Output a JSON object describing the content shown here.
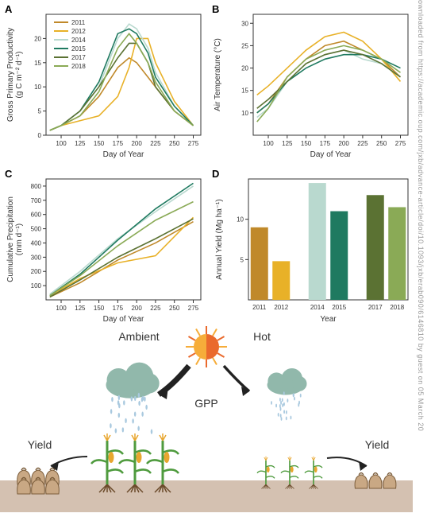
{
  "watermark_text": "ownloaded from https://academic.oup.com/jxb/advance-article/doi/10.1093/jxb/erab090/6146810 by guest on 05 March 20",
  "panelA": {
    "label": "A",
    "type": "line",
    "xlabel": "Day of Year",
    "ylabel": "Gross Primary Productivity\n(g C m⁻² d⁻¹)",
    "xlim": [
      80,
      285
    ],
    "ylim": [
      0,
      25
    ],
    "xticks": [
      100,
      125,
      150,
      175,
      200,
      225,
      250,
      275
    ],
    "yticks": [
      0,
      5,
      10,
      15,
      20
    ],
    "title_fontsize": 10,
    "label_fontsize": 9,
    "tick_fontsize": 8,
    "background_color": "#ffffff",
    "line_width": 1.6,
    "series": {
      "2011": {
        "color": "#c0892a",
        "x": [
          85,
          100,
          125,
          150,
          175,
          190,
          200,
          215,
          225,
          250,
          275
        ],
        "y": [
          1,
          2,
          4,
          8,
          14,
          16,
          15,
          12,
          10,
          5,
          2
        ]
      },
      "2012": {
        "color": "#e8b128",
        "x": [
          85,
          100,
          125,
          150,
          175,
          190,
          200,
          215,
          225,
          250,
          275
        ],
        "y": [
          1,
          2,
          3,
          4,
          8,
          14,
          20,
          20,
          15,
          7,
          2
        ]
      },
      "2014": {
        "color": "#b9d9cf",
        "x": [
          85,
          100,
          125,
          150,
          175,
          190,
          200,
          215,
          225,
          250,
          275
        ],
        "y": [
          1,
          2,
          5,
          10,
          20,
          23,
          22,
          18,
          13,
          6,
          2
        ]
      },
      "2015": {
        "color": "#1f7a60",
        "x": [
          85,
          100,
          125,
          150,
          175,
          190,
          200,
          215,
          225,
          250,
          275
        ],
        "y": [
          1,
          2,
          5,
          11,
          21,
          22,
          21,
          17,
          12,
          6,
          2
        ]
      },
      "2017": {
        "color": "#5b7233",
        "x": [
          85,
          100,
          125,
          150,
          175,
          190,
          200,
          215,
          225,
          250,
          275
        ],
        "y": [
          1,
          2,
          5,
          10,
          16,
          19,
          19,
          15,
          10,
          5,
          2
        ]
      },
      "2018": {
        "color": "#8aaa56",
        "x": [
          85,
          100,
          125,
          150,
          175,
          190,
          200,
          215,
          225,
          250,
          275
        ],
        "y": [
          1,
          2,
          4,
          9,
          18,
          21,
          19,
          15,
          11,
          5,
          2
        ]
      }
    },
    "legend_items": [
      "2011",
      "2012",
      "2014",
      "2015",
      "2017",
      "2018"
    ]
  },
  "panelB": {
    "label": "B",
    "type": "line",
    "xlabel": "Day of Year",
    "ylabel": "Air Temperature (°C)",
    "xlim": [
      80,
      285
    ],
    "ylim": [
      5,
      32
    ],
    "xticks": [
      100,
      125,
      150,
      175,
      200,
      225,
      250,
      275
    ],
    "yticks": [
      10,
      15,
      20,
      25,
      30
    ],
    "line_width": 1.6,
    "series": {
      "2011": {
        "color": "#c0892a",
        "x": [
          85,
          100,
          125,
          150,
          175,
          200,
          225,
          250,
          275
        ],
        "y": [
          10,
          12,
          18,
          22,
          25,
          26,
          24,
          22,
          18
        ]
      },
      "2012": {
        "color": "#e8b128",
        "x": [
          85,
          100,
          125,
          150,
          175,
          200,
          225,
          250,
          275
        ],
        "y": [
          14,
          16,
          20,
          24,
          27,
          28,
          26,
          22,
          17
        ]
      },
      "2014": {
        "color": "#b9d9cf",
        "x": [
          85,
          100,
          125,
          150,
          175,
          200,
          225,
          250,
          275
        ],
        "y": [
          9,
          11,
          17,
          21,
          23,
          24,
          22,
          21,
          18
        ]
      },
      "2015": {
        "color": "#1f7a60",
        "x": [
          85,
          100,
          125,
          150,
          175,
          200,
          225,
          250,
          275
        ],
        "y": [
          10,
          12,
          17,
          20,
          22,
          23,
          23,
          22,
          20
        ]
      },
      "2017": {
        "color": "#5b7233",
        "x": [
          85,
          100,
          125,
          150,
          175,
          200,
          225,
          250,
          275
        ],
        "y": [
          11,
          13,
          17,
          21,
          23,
          24,
          23,
          21,
          18
        ]
      },
      "2018": {
        "color": "#8aaa56",
        "x": [
          85,
          100,
          125,
          150,
          175,
          200,
          225,
          250,
          275
        ],
        "y": [
          8,
          11,
          18,
          22,
          24,
          25,
          24,
          22,
          19
        ]
      }
    }
  },
  "panelC": {
    "label": "C",
    "type": "line",
    "xlabel": "Day of Year",
    "ylabel": "Cumulative Precipitation\n(mm d⁻¹)",
    "xlim": [
      80,
      285
    ],
    "ylim": [
      0,
      850
    ],
    "xticks": [
      100,
      125,
      150,
      175,
      200,
      225,
      250,
      275
    ],
    "yticks": [
      100,
      200,
      300,
      400,
      500,
      600,
      700,
      800
    ],
    "line_width": 1.6,
    "series": {
      "2011": {
        "color": "#c0892a",
        "x": [
          85,
          125,
          175,
          225,
          275
        ],
        "y": [
          20,
          120,
          280,
          400,
          550
        ]
      },
      "2012": {
        "color": "#e8b128",
        "x": [
          85,
          125,
          175,
          225,
          275
        ],
        "y": [
          30,
          150,
          260,
          310,
          580
        ]
      },
      "2014": {
        "color": "#b9d9cf",
        "x": [
          85,
          125,
          175,
          225,
          275
        ],
        "y": [
          40,
          200,
          430,
          620,
          800
        ]
      },
      "2015": {
        "color": "#1f7a60",
        "x": [
          85,
          125,
          175,
          225,
          275
        ],
        "y": [
          30,
          180,
          420,
          640,
          820
        ]
      },
      "2017": {
        "color": "#5b7233",
        "x": [
          85,
          125,
          175,
          225,
          275
        ],
        "y": [
          20,
          140,
          300,
          430,
          570
        ]
      },
      "2018": {
        "color": "#8aaa56",
        "x": [
          85,
          125,
          175,
          225,
          275
        ],
        "y": [
          30,
          170,
          380,
          560,
          690
        ]
      }
    }
  },
  "panelD": {
    "label": "D",
    "type": "bar",
    "xlabel": "Year",
    "ylabel": "Annual Yield (Mg ha⁻¹)",
    "ylim": [
      0,
      15
    ],
    "yticks": [
      5,
      10
    ],
    "years": [
      "2011",
      "2012",
      "2014",
      "2015",
      "2017",
      "2018"
    ],
    "values": [
      9.0,
      4.8,
      14.5,
      11.0,
      13.0,
      11.5
    ],
    "bar_colors": [
      "#c0892a",
      "#e8b128",
      "#b9d9cf",
      "#1f7a60",
      "#5b7233",
      "#8aaa56"
    ],
    "bar_groups": [
      [
        0,
        1
      ],
      [
        2,
        3
      ],
      [
        4,
        5
      ]
    ],
    "bar_width": 0.8
  },
  "infographic": {
    "labels": {
      "ambient": "Ambient",
      "hot": "Hot",
      "gpp": "GPP",
      "yield": "Yield"
    },
    "colors": {
      "sun_outer": "#f6ad3a",
      "sun_inner": "#ea6a2d",
      "cloud": "#91b8ab",
      "rain": "#a9c9df",
      "corn_stalk": "#4f9b3e",
      "corn_ear": "#e8a62f",
      "corn_root": "#6b4a2a",
      "bag": "#c9a884",
      "bag_outline": "#7a5c3a",
      "ground": "#d4c1b1",
      "arrow": "#222222"
    },
    "ambient_plant_scale": 1.0,
    "hot_plant_scale": 0.55,
    "ambient_bag_count": 6,
    "hot_bag_count": 3,
    "label_fontsize": 14,
    "gpp_fontsize": 14
  }
}
